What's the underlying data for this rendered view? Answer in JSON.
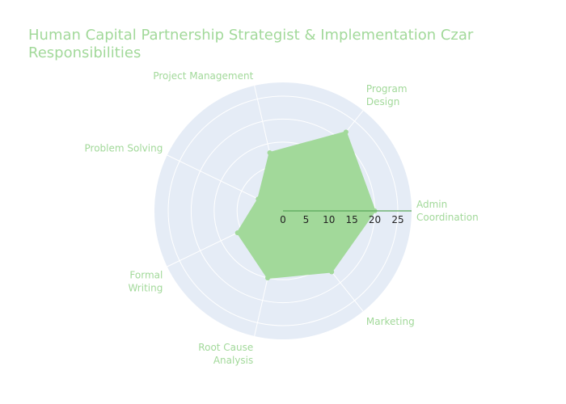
{
  "chart_data": {
    "type": "radar",
    "title": "Human Capital Partnership Strategist & Implementation  Czar Responsibilities",
    "categories": [
      "Admin Coordination",
      "Program Design",
      "Project Management",
      "Problem Solving",
      "Formal Writing",
      "Root Cause Analysis",
      "Marketing"
    ],
    "values": [
      20,
      22,
      13,
      6,
      11,
      15,
      17
    ],
    "radial_range": [
      0,
      28
    ],
    "radial_ticks": [
      0,
      5,
      10,
      15,
      20,
      25
    ],
    "colors": {
      "fill": "#a2d99a",
      "line": "#7fc97a",
      "radial_axis": "#5aa85a",
      "polar_bg": "#e5ecf6",
      "grid": "#ffffff",
      "text": "#a2d99a"
    }
  }
}
